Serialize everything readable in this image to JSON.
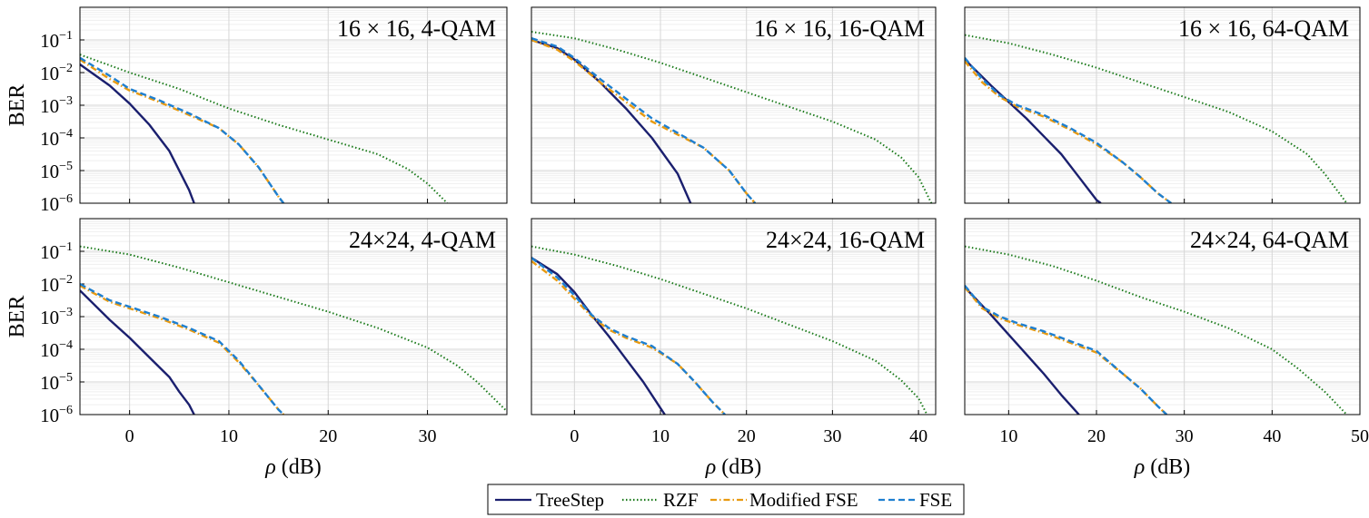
{
  "figure": {
    "legend": {
      "entries": [
        {
          "label": "TreeStep",
          "color": "#1a1f6e",
          "style": "solid"
        },
        {
          "label": "RZF",
          "color": "#1a7a1a",
          "style": "dotted"
        },
        {
          "label": "Modified FSE",
          "color": "#e89a10",
          "style": "dashdot"
        },
        {
          "label": "FSE",
          "color": "#1e7fd0",
          "style": "dashed"
        }
      ]
    }
  },
  "chart_data": [
    {
      "type": "line",
      "title": "16 × 16, 4-QAM",
      "xlabel": "",
      "ylabel": "BER",
      "xlim": [
        -5,
        38
      ],
      "ylim_exp": [
        -6,
        0
      ],
      "xticks": [
        0,
        10,
        20,
        30
      ],
      "yticks": [
        "10^-6",
        "10^-5",
        "10^-4",
        "10^-3",
        "10^-2",
        "10^-1"
      ],
      "series": [
        {
          "name": "TreeStep",
          "x": [
            -5,
            -2,
            0,
            2,
            4,
            6,
            6.5
          ],
          "log10_ber": [
            -1.75,
            -2.4,
            -2.95,
            -3.6,
            -4.4,
            -5.6,
            -6
          ]
        },
        {
          "name": "RZF",
          "x": [
            -5,
            0,
            5,
            10,
            15,
            20,
            25,
            28,
            30,
            32
          ],
          "log10_ber": [
            -1.45,
            -2,
            -2.5,
            -3.1,
            -3.6,
            -4.05,
            -4.5,
            -4.95,
            -5.4,
            -6
          ]
        },
        {
          "name": "Modified FSE",
          "x": [
            -5,
            -2,
            0,
            3,
            6,
            9,
            11,
            13,
            15,
            15.5
          ],
          "log10_ber": [
            -1.6,
            -2.2,
            -2.55,
            -2.9,
            -3.3,
            -3.7,
            -4.2,
            -4.9,
            -5.8,
            -6
          ]
        },
        {
          "name": "FSE",
          "x": [
            -5,
            -2,
            0,
            3,
            6,
            9,
            11,
            13,
            15,
            15.5
          ],
          "log10_ber": [
            -1.55,
            -2.1,
            -2.5,
            -2.85,
            -3.25,
            -3.7,
            -4.2,
            -4.9,
            -5.8,
            -6
          ]
        }
      ]
    },
    {
      "type": "line",
      "title": "16 × 16, 16-QAM",
      "xlabel": "",
      "ylabel": "",
      "xlim": [
        -5,
        42
      ],
      "ylim_exp": [
        -6,
        0
      ],
      "xticks": [
        0,
        10,
        20,
        30,
        40
      ],
      "yticks": [],
      "series": [
        {
          "name": "TreeStep",
          "x": [
            -5,
            -2,
            0,
            3,
            6,
            9,
            12,
            13.5
          ],
          "log10_ber": [
            -1,
            -1.25,
            -1.6,
            -2.3,
            -3.1,
            -4,
            -5.1,
            -6
          ]
        },
        {
          "name": "RZF",
          "x": [
            -5,
            0,
            5,
            10,
            15,
            20,
            25,
            30,
            35,
            38,
            40,
            41.5
          ],
          "log10_ber": [
            -0.75,
            -0.95,
            -1.3,
            -1.7,
            -2.15,
            -2.6,
            -3.05,
            -3.5,
            -4.05,
            -4.6,
            -5.2,
            -6
          ]
        },
        {
          "name": "Modified FSE",
          "x": [
            -5,
            -2,
            0,
            3,
            6,
            9,
            12,
            15,
            18,
            20,
            21
          ],
          "log10_ber": [
            -1,
            -1.3,
            -1.65,
            -2.3,
            -2.9,
            -3.5,
            -3.9,
            -4.3,
            -5,
            -5.7,
            -6
          ]
        },
        {
          "name": "FSE",
          "x": [
            -5,
            -2,
            0,
            3,
            6,
            9,
            12,
            15,
            18,
            20,
            21
          ],
          "log10_ber": [
            -0.95,
            -1.2,
            -1.55,
            -2.2,
            -2.8,
            -3.4,
            -3.85,
            -4.3,
            -5,
            -5.7,
            -6
          ]
        }
      ]
    },
    {
      "type": "line",
      "title": "16 × 16, 64-QAM",
      "xlabel": "",
      "ylabel": "",
      "xlim": [
        5,
        50
      ],
      "ylim_exp": [
        -6,
        0
      ],
      "xticks": [
        10,
        20,
        30,
        40,
        50
      ],
      "yticks": [],
      "series": [
        {
          "name": "TreeStep",
          "x": [
            5,
            8,
            10,
            12,
            14,
            16,
            18,
            20,
            20.5
          ],
          "log10_ber": [
            -1.6,
            -2.4,
            -2.9,
            -3.4,
            -3.95,
            -4.5,
            -5.2,
            -5.9,
            -6
          ]
        },
        {
          "name": "RZF",
          "x": [
            5,
            10,
            15,
            20,
            25,
            30,
            35,
            40,
            44,
            46,
            48.5
          ],
          "log10_ber": [
            -0.85,
            -1.1,
            -1.45,
            -1.85,
            -2.3,
            -2.75,
            -3.2,
            -3.8,
            -4.5,
            -5.1,
            -6
          ]
        },
        {
          "name": "Modified FSE",
          "x": [
            5,
            7,
            9,
            11,
            14,
            17,
            20,
            23,
            25,
            27,
            28.5
          ],
          "log10_ber": [
            -1.65,
            -2.3,
            -2.75,
            -3.05,
            -3.35,
            -3.75,
            -4.2,
            -4.75,
            -5.2,
            -5.7,
            -6
          ]
        },
        {
          "name": "FSE",
          "x": [
            5,
            7,
            9,
            11,
            14,
            17,
            20,
            23,
            25,
            27,
            28.5
          ],
          "log10_ber": [
            -1.55,
            -2.2,
            -2.7,
            -3,
            -3.3,
            -3.7,
            -4.15,
            -4.75,
            -5.2,
            -5.7,
            -6
          ]
        }
      ]
    },
    {
      "type": "line",
      "title": "24×24, 4-QAM",
      "xlabel": "ρ (dB)",
      "ylabel": "BER",
      "xlim": [
        -5,
        38
      ],
      "ylim_exp": [
        -6,
        0
      ],
      "xticks": [
        0,
        10,
        20,
        30
      ],
      "yticks": [
        "10^-6",
        "10^-5",
        "10^-4",
        "10^-3",
        "10^-2",
        "10^-1"
      ],
      "series": [
        {
          "name": "TreeStep",
          "x": [
            -5,
            -2,
            0,
            2,
            4,
            5,
            6,
            6.5
          ],
          "log10_ber": [
            -2.2,
            -3.1,
            -3.65,
            -4.25,
            -4.85,
            -5.3,
            -5.7,
            -6
          ]
        },
        {
          "name": "RZF",
          "x": [
            -5,
            0,
            5,
            10,
            15,
            20,
            25,
            30,
            33,
            35,
            38
          ],
          "log10_ber": [
            -0.85,
            -1.1,
            -1.5,
            -1.95,
            -2.4,
            -2.85,
            -3.35,
            -3.95,
            -4.5,
            -5,
            -5.9
          ]
        },
        {
          "name": "Modified FSE",
          "x": [
            -5,
            -2,
            0,
            3,
            6,
            9,
            11,
            13,
            15,
            15.5
          ],
          "log10_ber": [
            -2.05,
            -2.55,
            -2.75,
            -3.05,
            -3.4,
            -3.8,
            -4.4,
            -5.1,
            -5.85,
            -6
          ]
        },
        {
          "name": "FSE",
          "x": [
            -5,
            -2,
            0,
            3,
            6,
            9,
            11,
            13,
            15,
            15.5
          ],
          "log10_ber": [
            -2,
            -2.5,
            -2.7,
            -3,
            -3.35,
            -3.75,
            -4.35,
            -5.1,
            -5.85,
            -6
          ]
        }
      ]
    },
    {
      "type": "line",
      "title": "24×24, 16-QAM",
      "xlabel": "ρ (dB)",
      "ylabel": "",
      "xlim": [
        -5,
        42
      ],
      "ylim_exp": [
        -6,
        0
      ],
      "xticks": [
        0,
        10,
        20,
        30,
        40
      ],
      "yticks": [],
      "series": [
        {
          "name": "TreeStep",
          "x": [
            -5,
            -2,
            0,
            2,
            4,
            6,
            8,
            10,
            10.5
          ],
          "log10_ber": [
            -1.2,
            -1.7,
            -2.25,
            -2.95,
            -3.6,
            -4.3,
            -5,
            -5.8,
            -6
          ]
        },
        {
          "name": "RZF",
          "x": [
            -5,
            0,
            5,
            10,
            15,
            20,
            25,
            30,
            35,
            38,
            40,
            41
          ],
          "log10_ber": [
            -0.85,
            -1.1,
            -1.45,
            -1.85,
            -2.3,
            -2.75,
            -3.25,
            -3.75,
            -4.35,
            -4.95,
            -5.5,
            -6
          ]
        },
        {
          "name": "Modified FSE",
          "x": [
            -5,
            -2,
            0,
            2,
            4,
            6,
            9,
            12,
            14,
            16,
            17.5
          ],
          "log10_ber": [
            -1.3,
            -1.9,
            -2.45,
            -3,
            -3.4,
            -3.65,
            -3.95,
            -4.45,
            -5,
            -5.6,
            -6
          ]
        },
        {
          "name": "FSE",
          "x": [
            -5,
            -2,
            0,
            2,
            4,
            6,
            9,
            12,
            14,
            16,
            17.5
          ],
          "log10_ber": [
            -1.2,
            -1.8,
            -2.35,
            -2.95,
            -3.35,
            -3.6,
            -3.9,
            -4.45,
            -5,
            -5.6,
            -6
          ]
        }
      ]
    },
    {
      "type": "line",
      "title": "24×24, 64-QAM",
      "xlabel": "ρ (dB)",
      "ylabel": "",
      "xlim": [
        5,
        50
      ],
      "ylim_exp": [
        -6,
        0
      ],
      "xticks": [
        10,
        20,
        30,
        40,
        50
      ],
      "yticks": [],
      "series": [
        {
          "name": "TreeStep",
          "x": [
            5,
            8,
            10,
            12,
            14,
            16,
            17,
            18
          ],
          "log10_ber": [
            -2.1,
            -2.95,
            -3.55,
            -4.15,
            -4.75,
            -5.4,
            -5.7,
            -6
          ]
        },
        {
          "name": "RZF",
          "x": [
            5,
            10,
            15,
            20,
            25,
            30,
            35,
            40,
            43,
            46,
            48.5
          ],
          "log10_ber": [
            -0.85,
            -1.1,
            -1.45,
            -1.9,
            -2.4,
            -2.85,
            -3.35,
            -4,
            -4.6,
            -5.3,
            -6
          ]
        },
        {
          "name": "Modified FSE",
          "x": [
            5,
            7,
            9,
            11,
            14,
            17,
            20,
            23,
            25,
            27,
            28
          ],
          "log10_ber": [
            -2.1,
            -2.75,
            -3.05,
            -3.25,
            -3.5,
            -3.8,
            -4.1,
            -4.75,
            -5.2,
            -5.75,
            -6
          ]
        },
        {
          "name": "FSE",
          "x": [
            5,
            7,
            9,
            11,
            14,
            17,
            20,
            23,
            25,
            27,
            28
          ],
          "log10_ber": [
            -2.05,
            -2.7,
            -3,
            -3.2,
            -3.45,
            -3.75,
            -4.05,
            -4.75,
            -5.2,
            -5.75,
            -6
          ]
        }
      ]
    }
  ]
}
